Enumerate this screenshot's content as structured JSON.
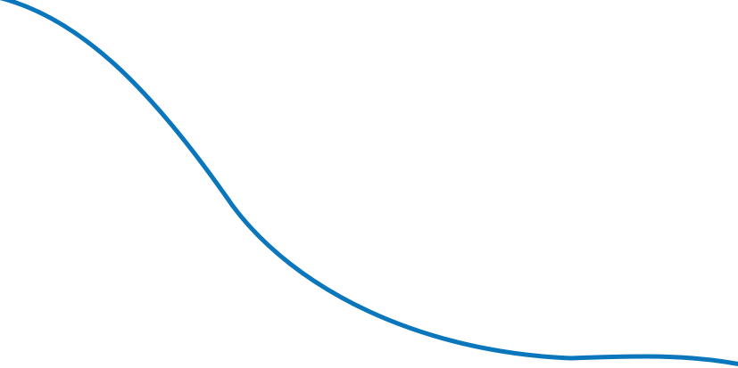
{
  "decoration": {
    "shape": "wave-curve",
    "stroke_color": "#0a76bc",
    "background_color": "#ffffff"
  }
}
